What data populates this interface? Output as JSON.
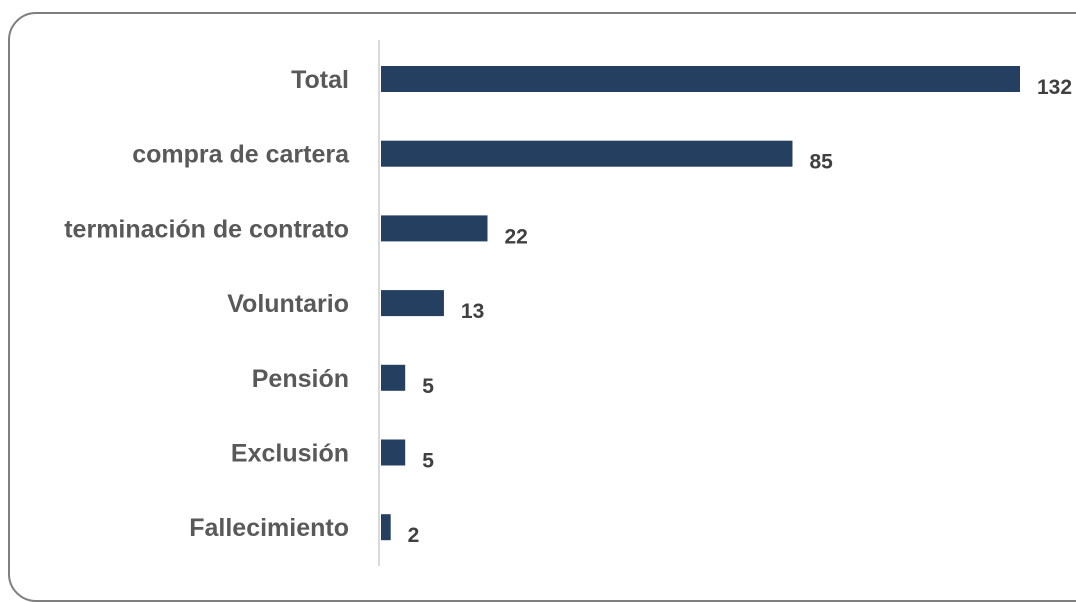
{
  "chart_data": {
    "type": "bar",
    "orientation": "horizontal",
    "categories": [
      "Total",
      "compra de cartera",
      "terminación de contrato",
      "Voluntario",
      "Pensión",
      "Exclusión",
      "Fallecimiento"
    ],
    "values": [
      132,
      85,
      22,
      13,
      5,
      5,
      2
    ],
    "xlim": [
      0,
      132
    ],
    "grid": false,
    "legend": "none",
    "bar_color": "#243f60",
    "label_color": "#595959",
    "value_label_color": "#404040"
  }
}
